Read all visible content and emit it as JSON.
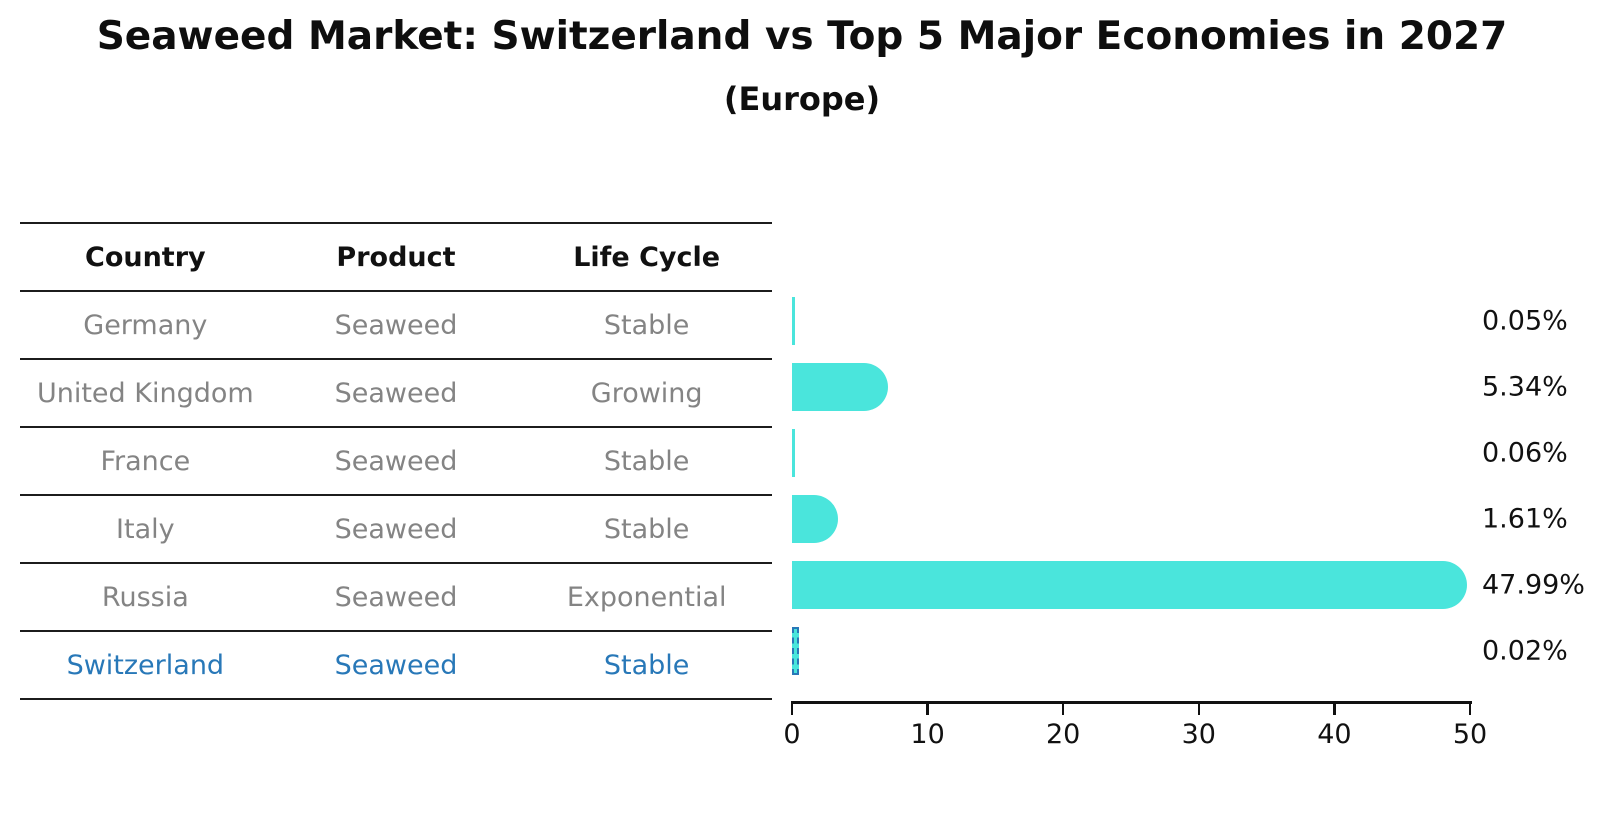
{
  "title": "Seaweed Market: Switzerland vs Top 5 Major Economies in 2027",
  "subtitle": "(Europe)",
  "table": {
    "headers": [
      "Country",
      "Product",
      "Life Cycle"
    ],
    "rows": [
      {
        "country": "Germany",
        "product": "Seaweed",
        "life_cycle": "Stable",
        "highlighted": false
      },
      {
        "country": "United Kingdom",
        "product": "Seaweed",
        "life_cycle": "Growing",
        "highlighted": false
      },
      {
        "country": "France",
        "product": "Seaweed",
        "life_cycle": "Stable",
        "highlighted": false
      },
      {
        "country": "Italy",
        "product": "Seaweed",
        "life_cycle": "Stable",
        "highlighted": false
      },
      {
        "country": "Russia",
        "product": "Seaweed",
        "life_cycle": "Exponential",
        "highlighted": false
      },
      {
        "country": "Switzerland",
        "product": "Seaweed",
        "life_cycle": "Stable",
        "highlighted": true
      }
    ]
  },
  "chart_data": {
    "type": "bar",
    "orientation": "horizontal",
    "title": "Seaweed Market: Switzerland vs Top 5 Major Economies in 2027",
    "subtitle": "(Europe)",
    "categories": [
      "Germany",
      "United Kingdom",
      "France",
      "Italy",
      "Russia",
      "Switzerland"
    ],
    "values": [
      0.05,
      5.34,
      0.06,
      1.61,
      47.99,
      0.02
    ],
    "value_labels": [
      "0.05%",
      "5.34%",
      "0.06%",
      "1.61%",
      "47.99%",
      "0.02%"
    ],
    "xlabel": "",
    "ylabel": "",
    "xlim": [
      0,
      50
    ],
    "x_ticks": [
      0,
      10,
      20,
      30,
      40,
      50
    ],
    "grid": false,
    "legend": false,
    "highlight_index": 5
  },
  "colors": {
    "bar": "#4AE5DC",
    "highlight": "#2878B8",
    "table_text": "#848484",
    "header_text": "#111111",
    "axis": "#111111",
    "background": "#FFFFFF"
  }
}
